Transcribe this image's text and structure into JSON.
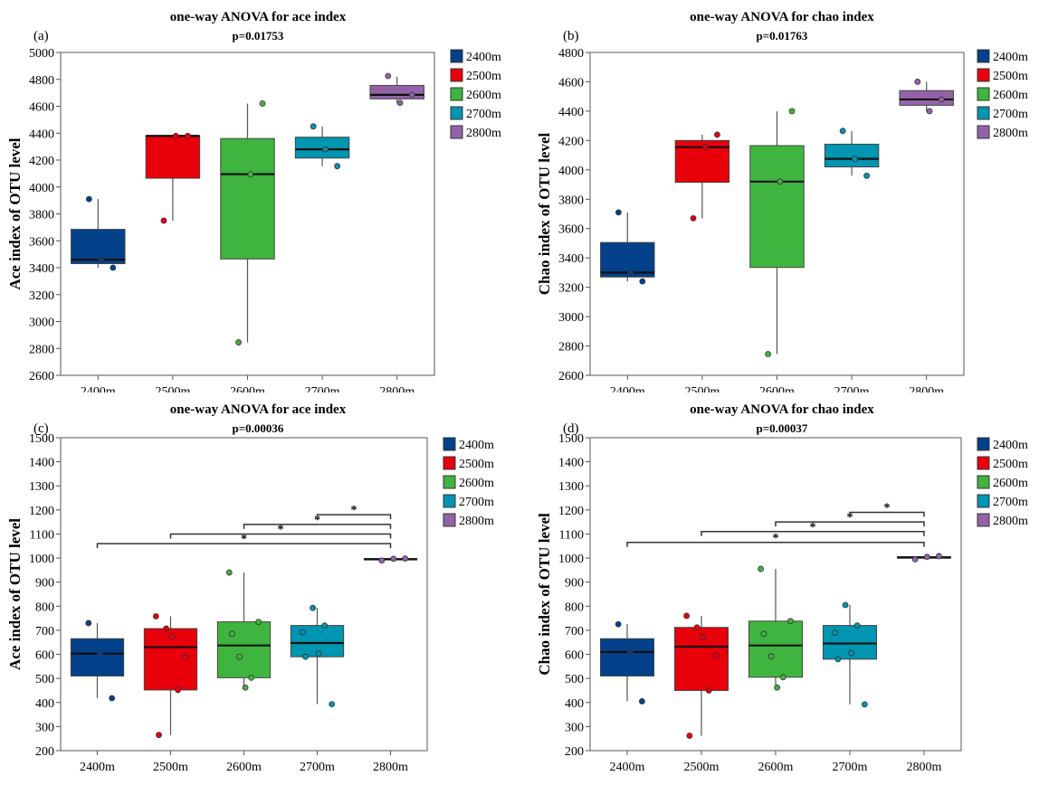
{
  "colors": {
    "2400m": "#03418a",
    "2500m": "#e8000b",
    "2600m": "#3fb43f",
    "2700m": "#0095b0",
    "2800m": "#9363a8"
  },
  "chart_data": [
    {
      "panel_label": "(a)",
      "type": "box",
      "title": "one-way ANOVA for ace index",
      "subtitle": "p=0.01753",
      "ylabel": "Ace index of OTU level",
      "ylim": [
        2600,
        5000
      ],
      "ytick_step": 200,
      "categories": [
        "2400m",
        "2500m",
        "2600m",
        "2700m",
        "2800m"
      ],
      "legend": [
        "2400m",
        "2500m",
        "2600m",
        "2700m",
        "2800m"
      ],
      "boxes": [
        {
          "q1": 3430,
          "median": 3460,
          "q3": 3685,
          "low": 3400,
          "high": 3910,
          "points": [
            3910,
            3460,
            3400
          ]
        },
        {
          "q1": 4065,
          "median": 4380,
          "q3": 4380,
          "low": 3750,
          "high": 4380,
          "points": [
            3750,
            4380,
            4380
          ]
        },
        {
          "q1": 3465,
          "median": 4095,
          "q3": 4360,
          "low": 2845,
          "high": 4620,
          "points": [
            2845,
            4095,
            4620
          ]
        },
        {
          "q1": 4215,
          "median": 4280,
          "q3": 4370,
          "low": 4155,
          "high": 4450,
          "points": [
            4450,
            4280,
            4155
          ]
        },
        {
          "q1": 4655,
          "median": 4685,
          "q3": 4755,
          "low": 4625,
          "high": 4820,
          "points": [
            4825,
            4625,
            4685
          ]
        }
      ],
      "significance": []
    },
    {
      "panel_label": "(b)",
      "type": "box",
      "title": "one-way ANOVA for chao index",
      "subtitle": "p=0.01763",
      "ylabel": "Chao index of OTU level",
      "ylim": [
        2600,
        4800
      ],
      "ytick_step": 200,
      "categories": [
        "2400m",
        "2500m",
        "2600m",
        "2700m",
        "2800m"
      ],
      "legend": [
        "2400m",
        "2500m",
        "2600m",
        "2700m",
        "2800m"
      ],
      "boxes": [
        {
          "q1": 3270,
          "median": 3300,
          "q3": 3505,
          "low": 3240,
          "high": 3710,
          "points": [
            3710,
            3300,
            3240
          ]
        },
        {
          "q1": 3915,
          "median": 4155,
          "q3": 4200,
          "low": 3670,
          "high": 4240,
          "points": [
            3670,
            4155,
            4240
          ]
        },
        {
          "q1": 3335,
          "median": 3920,
          "q3": 4165,
          "low": 2745,
          "high": 4400,
          "points": [
            2745,
            3920,
            4400
          ]
        },
        {
          "q1": 4020,
          "median": 4075,
          "q3": 4175,
          "low": 3960,
          "high": 4265,
          "points": [
            4265,
            4075,
            3960
          ]
        },
        {
          "q1": 4440,
          "median": 4480,
          "q3": 4540,
          "low": 4400,
          "high": 4600,
          "points": [
            4600,
            4400,
            4480
          ]
        }
      ],
      "significance": []
    },
    {
      "panel_label": "(c)",
      "type": "box",
      "title": "one-way ANOVA for ace index",
      "subtitle": "p=0.00036",
      "ylabel": "Ace index of OTU level",
      "ylim": [
        200,
        1500
      ],
      "ytick_step": 100,
      "categories": [
        "2400m",
        "2500m",
        "2600m",
        "2700m",
        "2800m"
      ],
      "legend": [
        "2400m",
        "2500m",
        "2600m",
        "2700m",
        "2800m"
      ],
      "boxes": [
        {
          "q1": 510,
          "median": 603,
          "q3": 665,
          "low": 418,
          "high": 730,
          "points": [
            730,
            603,
            418
          ]
        },
        {
          "q1": 452,
          "median": 630,
          "q3": 707,
          "low": 265,
          "high": 758,
          "points": [
            758,
            265,
            707,
            673,
            452,
            588
          ]
        },
        {
          "q1": 503,
          "median": 637,
          "q3": 735,
          "low": 462,
          "high": 940,
          "points": [
            940,
            685,
            590,
            462,
            503,
            735
          ]
        },
        {
          "q1": 590,
          "median": 647,
          "q3": 720,
          "low": 393,
          "high": 793,
          "points": [
            692,
            590,
            793,
            603,
            720,
            393
          ]
        },
        {
          "q1": 993,
          "median": 995,
          "q3": 998,
          "low": 990,
          "high": 1000,
          "points": [
            990,
            997,
            998
          ]
        }
      ],
      "significance": [
        {
          "from": "2400m",
          "to": "2800m",
          "y": 1060,
          "label": "*"
        },
        {
          "from": "2500m",
          "to": "2800m",
          "y": 1100,
          "label": "*"
        },
        {
          "from": "2600m",
          "to": "2800m",
          "y": 1140,
          "label": "*"
        },
        {
          "from": "2700m",
          "to": "2800m",
          "y": 1180,
          "label": "*"
        }
      ]
    },
    {
      "panel_label": "(d)",
      "type": "box",
      "title": "one-way ANOVA for chao index",
      "subtitle": "p=0.00037",
      "ylabel": "Chao index of OTU level",
      "ylim": [
        200,
        1500
      ],
      "ytick_step": 100,
      "categories": [
        "2400m",
        "2500m",
        "2600m",
        "2700m",
        "2800m"
      ],
      "legend": [
        "2400m",
        "2500m",
        "2600m",
        "2700m",
        "2800m"
      ],
      "boxes": [
        {
          "q1": 510,
          "median": 610,
          "q3": 665,
          "low": 405,
          "high": 725,
          "points": [
            725,
            610,
            405
          ]
        },
        {
          "q1": 450,
          "median": 632,
          "q3": 712,
          "low": 262,
          "high": 760,
          "points": [
            760,
            262,
            712,
            672,
            450,
            595
          ]
        },
        {
          "q1": 505,
          "median": 637,
          "q3": 738,
          "low": 462,
          "high": 955,
          "points": [
            955,
            685,
            592,
            462,
            505,
            738
          ]
        },
        {
          "q1": 580,
          "median": 645,
          "q3": 720,
          "low": 392,
          "high": 805,
          "points": [
            690,
            580,
            805,
            605,
            720,
            392
          ]
        },
        {
          "q1": 1000,
          "median": 1003,
          "q3": 1005,
          "low": 995,
          "high": 1008,
          "points": [
            995,
            1005,
            1008
          ]
        }
      ],
      "significance": [
        {
          "from": "2400m",
          "to": "2800m",
          "y": 1065,
          "label": "*"
        },
        {
          "from": "2500m",
          "to": "2800m",
          "y": 1110,
          "label": "*"
        },
        {
          "from": "2600m",
          "to": "2800m",
          "y": 1150,
          "label": "*"
        },
        {
          "from": "2700m",
          "to": "2800m",
          "y": 1190,
          "label": "*"
        }
      ]
    }
  ]
}
